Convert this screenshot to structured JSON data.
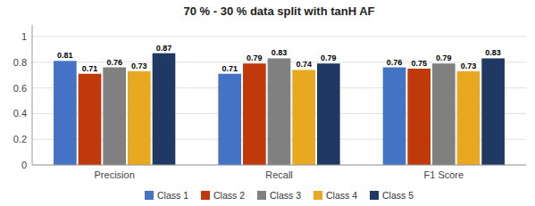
{
  "chart_data": {
    "type": "bar",
    "title": "70 % - 30 % data split with tanH AF",
    "categories": [
      "Precision",
      "Recall",
      "F1 Score"
    ],
    "series": [
      {
        "name": "Class 1",
        "color": "#4472C4",
        "values": [
          0.81,
          0.71,
          0.76
        ]
      },
      {
        "name": "Class 2",
        "color": "#C0390B",
        "values": [
          0.71,
          0.79,
          0.75
        ]
      },
      {
        "name": "Class 3",
        "color": "#808080",
        "values": [
          0.76,
          0.83,
          0.79
        ]
      },
      {
        "name": "Class 4",
        "color": "#E8A820",
        "values": [
          0.73,
          0.74,
          0.73
        ]
      },
      {
        "name": "Class 5",
        "color": "#1F3864",
        "values": [
          0.87,
          0.79,
          0.83
        ]
      }
    ],
    "ylim": [
      0,
      1.09
    ],
    "yticks": [
      0,
      0.2,
      0.4,
      0.6,
      0.8,
      1
    ],
    "grid": true,
    "legend": "bottom",
    "data_labels": true
  }
}
